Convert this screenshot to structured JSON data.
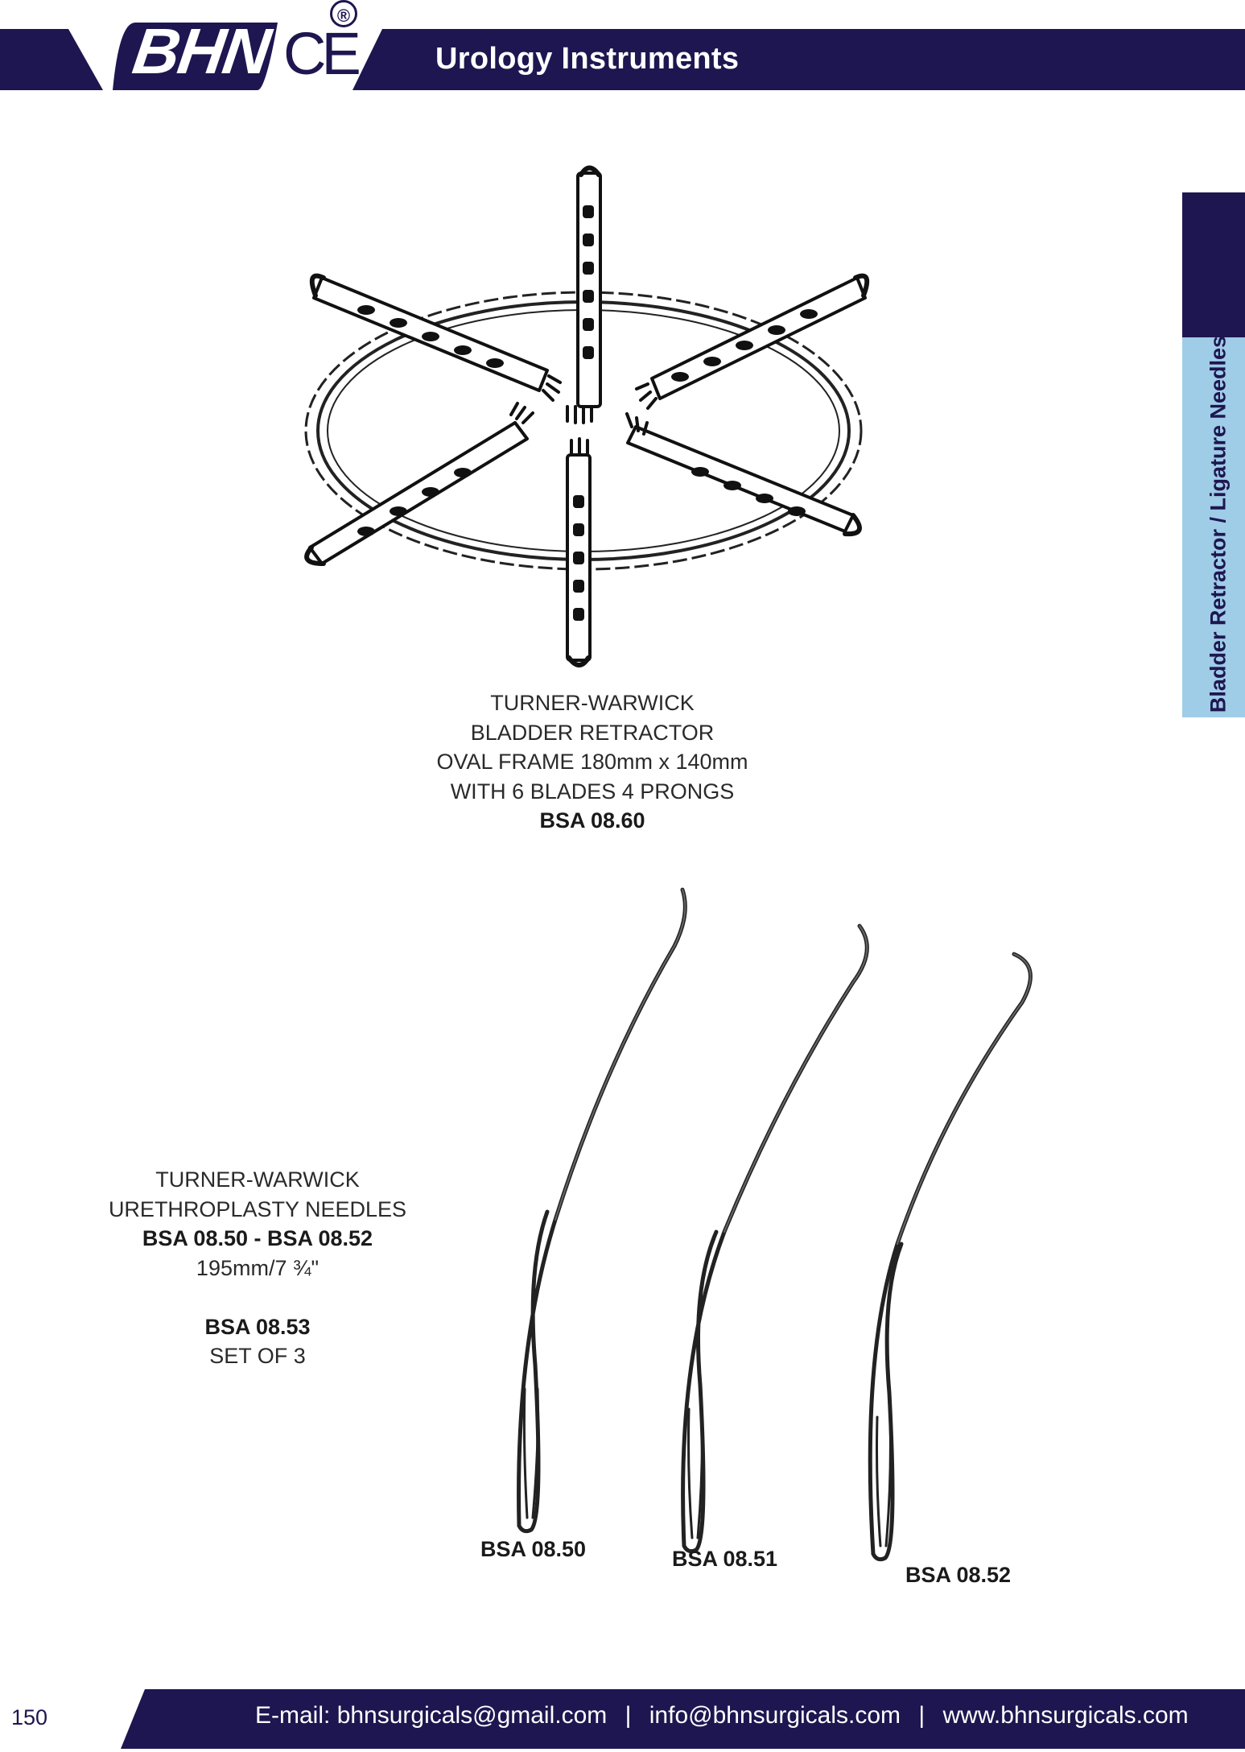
{
  "header": {
    "brand": "BHN",
    "ce_mark": "CE",
    "registered_mark": "®",
    "title": "Urology Instruments",
    "brand_color": "#1e1650"
  },
  "side_tab": {
    "label": "Bladder Retractor / Ligature Needles",
    "dark_color": "#1e1650",
    "light_color": "#9fcce6"
  },
  "product_retractor": {
    "lines": [
      "TURNER-WARWICK",
      "BLADDER RETRACTOR",
      "OVAL FRAME 180mm x 140mm",
      "WITH 6 BLADES 4 PRONGS"
    ],
    "code": "BSA 08.60"
  },
  "product_needles": {
    "line1": "TURNER-WARWICK",
    "line2": "URETHROPLASTY NEEDLES",
    "code_range": "BSA 08.50 - BSA 08.52",
    "size": "195mm/7 ¾\"",
    "set_code": "BSA 08.53",
    "set_label": "SET OF 3",
    "needle_codes": [
      "BSA 08.50",
      "BSA 08.51",
      "BSA 08.52"
    ]
  },
  "footer": {
    "page_number": "150",
    "email_label": "E-mail:",
    "email1": "bhnsurgicals@gmail.com",
    "separator": "|",
    "email2": "info@bhnsurgicals.com",
    "website": "www.bhnsurgicals.com"
  }
}
